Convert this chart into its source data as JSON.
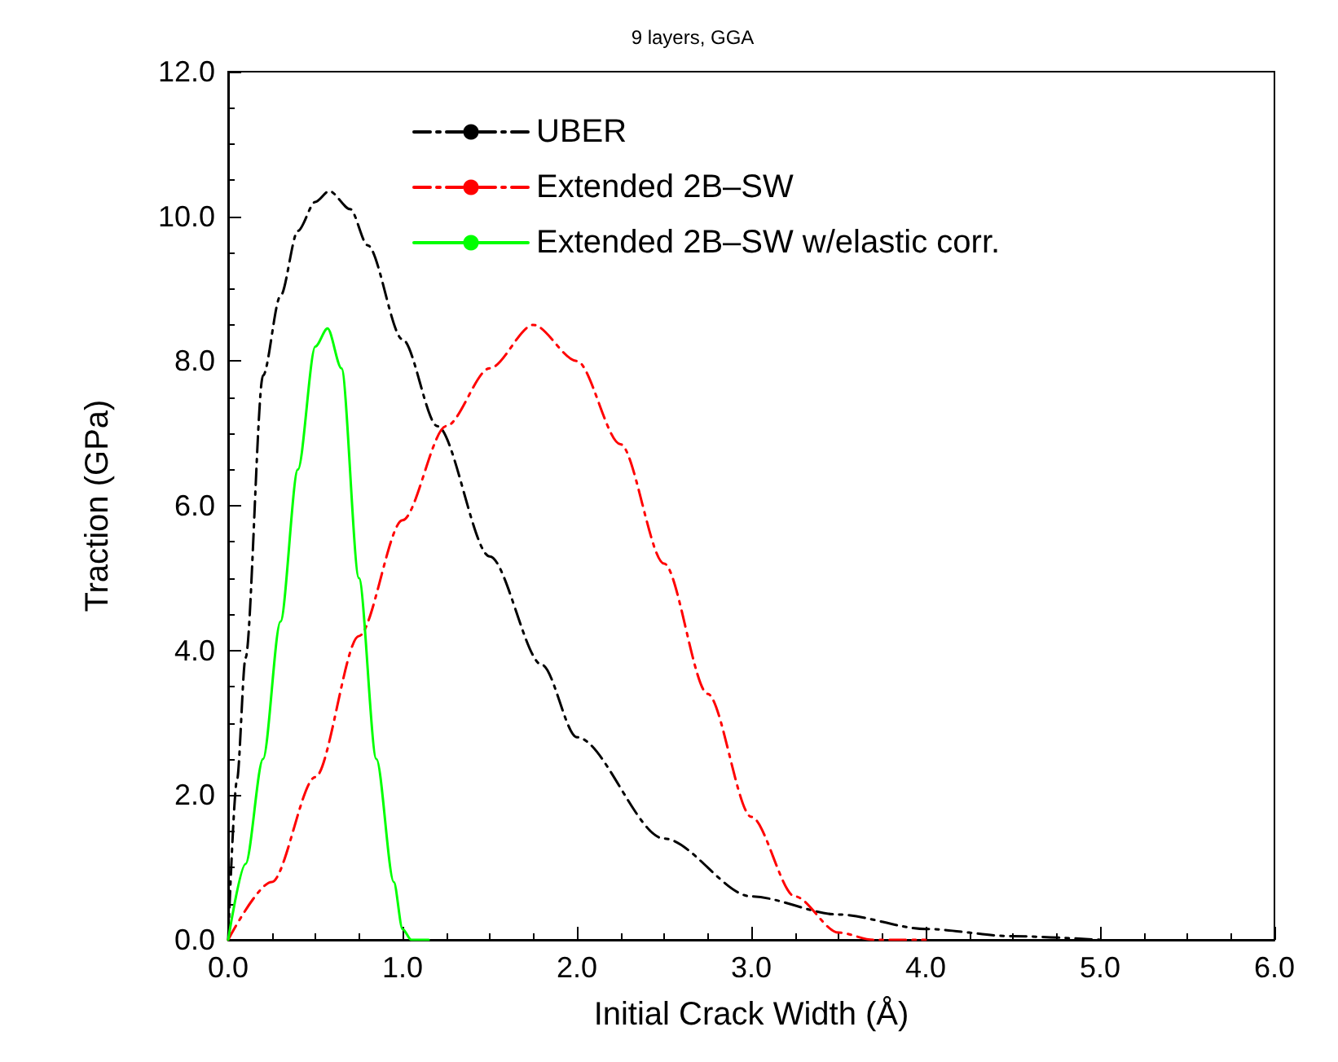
{
  "chart_data": {
    "type": "line",
    "title": "9 layers, GGA",
    "xlabel": "Initial Crack Width (Å)",
    "ylabel": "Traction (GPa)",
    "xlim": [
      0,
      6
    ],
    "xticks": [
      {
        "value": 0,
        "label": "0.0"
      },
      {
        "value": 1,
        "label": "1.0"
      },
      {
        "value": 2,
        "label": "2.0"
      },
      {
        "value": 3,
        "label": "3.0"
      },
      {
        "value": 4,
        "label": "4.0"
      },
      {
        "value": 5,
        "label": "5.0"
      },
      {
        "value": 6,
        "label": "6.0"
      }
    ],
    "ylim": [
      0,
      12
    ],
    "yticks": [
      {
        "value": 0,
        "label": "0.0"
      },
      {
        "value": 2,
        "label": "2.0"
      },
      {
        "value": 4,
        "label": "4.0"
      },
      {
        "value": 6,
        "label": "6.0"
      },
      {
        "value": 8,
        "label": "8.0"
      },
      {
        "value": 10,
        "label": "10.0"
      },
      {
        "value": 12,
        "label": "12.0"
      }
    ],
    "grid": false,
    "legend": "top",
    "marker": "none",
    "series": [
      {
        "name": "UBER",
        "color": "#000000",
        "line_style": "dashed",
        "x": [
          0,
          0.05,
          0.1,
          0.2,
          0.3,
          0.4,
          0.5,
          0.58,
          0.7,
          0.8,
          1.0,
          1.2,
          1.5,
          1.8,
          2.0,
          2.5,
          3.0,
          3.5,
          4.0,
          4.5,
          5.0
        ],
        "values": [
          0,
          2.2,
          3.9,
          7.8,
          8.9,
          9.8,
          10.2,
          10.35,
          10.1,
          9.6,
          8.3,
          7.1,
          5.3,
          3.8,
          2.8,
          1.4,
          0.6,
          0.35,
          0.15,
          0.05,
          0
        ]
      },
      {
        "name": "Extended 2B–SW",
        "color": "#ff0000",
        "line_style": "dashed",
        "x": [
          0,
          0.25,
          0.5,
          0.75,
          1.0,
          1.25,
          1.5,
          1.75,
          2.0,
          2.25,
          2.5,
          2.75,
          3.0,
          3.25,
          3.5,
          3.7,
          4.0
        ],
        "values": [
          0,
          0.8,
          2.25,
          4.2,
          5.8,
          7.1,
          7.9,
          8.5,
          8.0,
          6.85,
          5.2,
          3.4,
          1.7,
          0.6,
          0.1,
          0,
          0
        ]
      },
      {
        "name": "Extended 2B–SW w/elastic corr.",
        "color": "#00ff00",
        "line_style": "solid",
        "x": [
          0,
          0.1,
          0.2,
          0.3,
          0.4,
          0.5,
          0.57,
          0.65,
          0.75,
          0.85,
          0.95,
          1.0,
          1.05,
          1.15
        ],
        "values": [
          0,
          1.05,
          2.5,
          4.4,
          6.5,
          8.2,
          8.45,
          7.9,
          5.0,
          2.5,
          0.8,
          0.15,
          0,
          0
        ]
      }
    ]
  }
}
